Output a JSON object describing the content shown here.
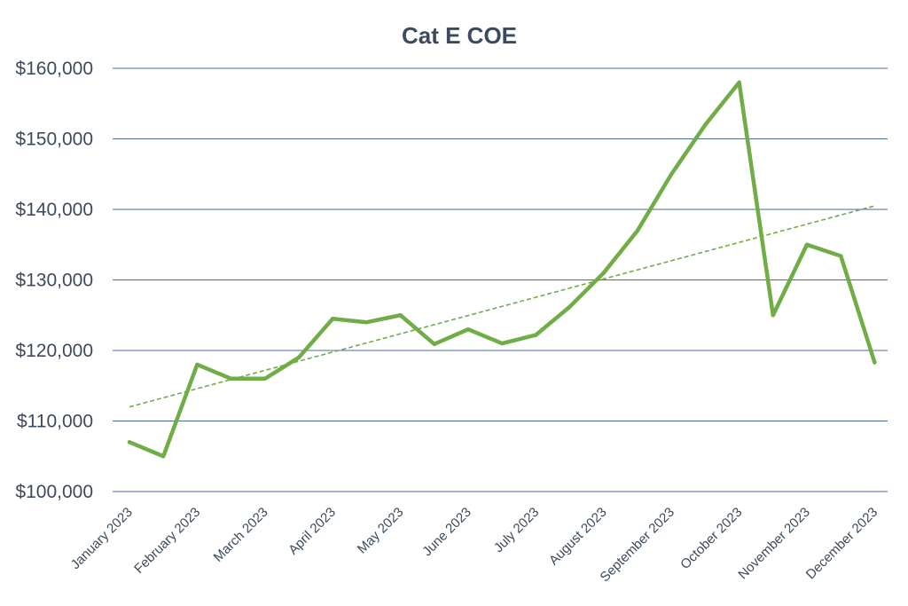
{
  "chart_data": {
    "type": "line",
    "title": "Cat E COE",
    "xlabel": "",
    "ylabel": "",
    "x": [
      0,
      0.5,
      1,
      1.5,
      2,
      2.5,
      3,
      3.5,
      4,
      4.5,
      5,
      5.5,
      6,
      6.5,
      7,
      7.5,
      8,
      8.5,
      9,
      9.5,
      10,
      10.5,
      11
    ],
    "series": [
      {
        "values": [
          107000,
          105000,
          118000,
          116000,
          116000,
          119000,
          124500,
          124000,
          125000,
          120900,
          123000,
          121000,
          122200,
          126200,
          131000,
          137000,
          145000,
          152000,
          158000,
          125000,
          135000,
          133400,
          118300
        ]
      }
    ],
    "trendline": {
      "style": "dashed",
      "start_value": 112000,
      "end_value": 140500
    },
    "x_tick_labels": [
      "January 2023",
      "February 2023",
      "March 2023",
      "April 2023",
      "May 2023",
      "June 2023",
      "July 2023",
      "August 2023",
      "September 2023",
      "October 2023",
      "November 2023",
      "December 2023"
    ],
    "y_ticks": [
      100000,
      110000,
      120000,
      130000,
      140000,
      150000,
      160000
    ],
    "y_tick_labels": [
      "$100,000",
      "$110,000",
      "$120,000",
      "$130,000",
      "$140,000",
      "$150,000",
      "$160,000"
    ],
    "ylim": [
      100000,
      160000
    ],
    "grid": true,
    "legend": "none",
    "colors": {
      "line": "#70ad47",
      "trendline": "#70ad47",
      "grid": "#4a6a9a",
      "text": "#3b4a5c"
    }
  }
}
